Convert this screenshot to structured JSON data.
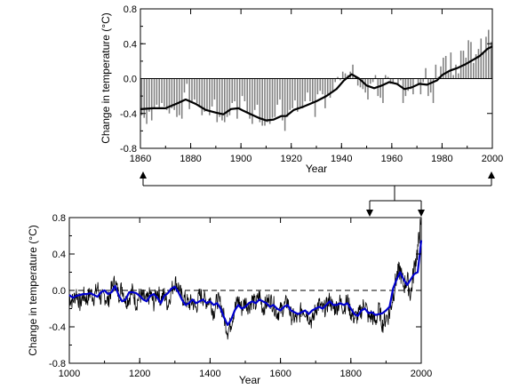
{
  "chart_data": [
    {
      "id": "top",
      "type": "bar",
      "overlay": "line",
      "xlabel": "Year",
      "ylabel": "Change in temperature (°C)",
      "xlim": [
        1860,
        2000
      ],
      "ylim": [
        -0.8,
        0.8
      ],
      "x_ticks": [
        1860,
        1880,
        1900,
        1920,
        1940,
        1960,
        1980,
        2000
      ],
      "x_tick_labels": [
        "1860",
        "1880",
        "1900",
        "1920",
        "1940",
        "1960",
        "1980",
        "2000"
      ],
      "y_ticks": [
        0.8,
        0.4,
        0.0,
        -0.4,
        -0.8
      ],
      "y_tick_labels": [
        "0.8",
        "0.4",
        "0.0",
        "-0.4",
        "-0.8"
      ],
      "bar_color": "#808080",
      "line_color": "#000000",
      "series": [
        {
          "kind": "bars",
          "x": [
            1860,
            1861,
            1862,
            1863,
            1864,
            1865,
            1866,
            1867,
            1868,
            1869,
            1870,
            1871,
            1872,
            1873,
            1874,
            1875,
            1876,
            1877,
            1878,
            1879,
            1880,
            1881,
            1882,
            1883,
            1884,
            1885,
            1886,
            1887,
            1888,
            1889,
            1890,
            1891,
            1892,
            1893,
            1894,
            1895,
            1896,
            1897,
            1898,
            1899,
            1900,
            1901,
            1902,
            1903,
            1904,
            1905,
            1906,
            1907,
            1908,
            1909,
            1910,
            1911,
            1912,
            1913,
            1914,
            1915,
            1916,
            1917,
            1918,
            1919,
            1920,
            1921,
            1922,
            1923,
            1924,
            1925,
            1926,
            1927,
            1928,
            1929,
            1930,
            1931,
            1932,
            1933,
            1934,
            1935,
            1936,
            1937,
            1938,
            1939,
            1940,
            1941,
            1942,
            1943,
            1944,
            1945,
            1946,
            1947,
            1948,
            1949,
            1950,
            1951,
            1952,
            1953,
            1954,
            1955,
            1956,
            1957,
            1958,
            1959,
            1960,
            1961,
            1962,
            1963,
            1964,
            1965,
            1966,
            1967,
            1968,
            1969,
            1970,
            1971,
            1972,
            1973,
            1974,
            1975,
            1976,
            1977,
            1978,
            1979,
            1980,
            1981,
            1982,
            1983,
            1984,
            1985,
            1986,
            1987,
            1988,
            1989,
            1990,
            1991,
            1992,
            1993,
            1994,
            1995,
            1996,
            1997,
            1998,
            1999
          ],
          "values": [
            -0.42,
            -0.45,
            -0.52,
            -0.38,
            -0.48,
            -0.34,
            -0.3,
            -0.33,
            -0.28,
            -0.32,
            -0.36,
            -0.4,
            -0.34,
            -0.36,
            -0.44,
            -0.42,
            -0.46,
            -0.16,
            -0.06,
            -0.35,
            -0.26,
            -0.24,
            -0.28,
            -0.33,
            -0.42,
            -0.38,
            -0.36,
            -0.42,
            -0.32,
            -0.24,
            -0.5,
            -0.44,
            -0.48,
            -0.5,
            -0.44,
            -0.42,
            -0.28,
            -0.26,
            -0.46,
            -0.34,
            -0.2,
            -0.26,
            -0.38,
            -0.46,
            -0.52,
            -0.36,
            -0.3,
            -0.5,
            -0.54,
            -0.54,
            -0.5,
            -0.52,
            -0.45,
            -0.44,
            -0.3,
            -0.24,
            -0.48,
            -0.6,
            -0.44,
            -0.36,
            -0.34,
            -0.25,
            -0.38,
            -0.32,
            -0.34,
            -0.26,
            -0.16,
            -0.26,
            -0.28,
            -0.44,
            -0.18,
            -0.14,
            -0.18,
            -0.34,
            -0.18,
            -0.22,
            -0.16,
            -0.04,
            0.02,
            -0.02,
            0.08,
            0.06,
            0.04,
            0.08,
            0.16,
            0.02,
            -0.08,
            -0.1,
            -0.12,
            -0.16,
            -0.24,
            -0.06,
            -0.04,
            0.04,
            -0.2,
            -0.22,
            -0.28,
            0.04,
            0.02,
            -0.06,
            -0.06,
            0.0,
            -0.06,
            -0.02,
            -0.28,
            -0.2,
            -0.14,
            -0.12,
            -0.18,
            0.0,
            -0.06,
            -0.18,
            -0.04,
            0.12,
            -0.2,
            -0.16,
            -0.28,
            0.16,
            0.02,
            0.14,
            0.24,
            0.26,
            0.08,
            0.3,
            0.04,
            0.16,
            0.06,
            0.32,
            0.32,
            0.24,
            0.44,
            0.42,
            0.18,
            0.28,
            0.34,
            0.46,
            0.3,
            0.48,
            0.56,
            0.42
          ]
        },
        {
          "kind": "line",
          "x": [
            1860,
            1865,
            1870,
            1875,
            1878,
            1882,
            1886,
            1890,
            1893,
            1896,
            1899,
            1901,
            1904,
            1907,
            1910,
            1913,
            1916,
            1918,
            1921,
            1925,
            1930,
            1934,
            1938,
            1941,
            1944,
            1947,
            1950,
            1953,
            1956,
            1959,
            1962,
            1965,
            1968,
            1971,
            1974,
            1978,
            1980,
            1983,
            1986,
            1989,
            1992,
            1995,
            1998,
            2000
          ],
          "values": [
            -0.35,
            -0.34,
            -0.34,
            -0.28,
            -0.24,
            -0.29,
            -0.36,
            -0.39,
            -0.41,
            -0.35,
            -0.34,
            -0.37,
            -0.41,
            -0.45,
            -0.48,
            -0.47,
            -0.43,
            -0.43,
            -0.36,
            -0.32,
            -0.26,
            -0.2,
            -0.12,
            -0.02,
            0.05,
            0.0,
            -0.08,
            -0.11,
            -0.08,
            -0.04,
            -0.06,
            -0.12,
            -0.1,
            -0.06,
            -0.07,
            -0.02,
            0.04,
            0.09,
            0.12,
            0.16,
            0.21,
            0.26,
            0.34,
            0.37
          ]
        }
      ]
    },
    {
      "id": "bottom",
      "type": "line",
      "xlabel": "Year",
      "ylabel": "Change in temperature (°C)",
      "xlim": [
        1000,
        2000
      ],
      "ylim": [
        -0.8,
        0.8
      ],
      "x_ticks": [
        1000,
        1200,
        1400,
        1600,
        1800,
        2000
      ],
      "x_tick_labels": [
        "1000",
        "1200",
        "1400",
        "1600",
        "1800",
        "2000"
      ],
      "y_ticks": [
        0.8,
        0.4,
        0.0,
        -0.4,
        -0.8
      ],
      "y_tick_labels": [
        "0.8",
        "0.4",
        "0.0",
        "-0.4",
        "-0.8"
      ],
      "zero_line": "dashed",
      "series": [
        {
          "kind": "annual",
          "color": "#000000",
          "x": [
            1000,
            1010,
            1020,
            1030,
            1040,
            1050,
            1060,
            1070,
            1080,
            1090,
            1100,
            1110,
            1120,
            1130,
            1140,
            1150,
            1160,
            1170,
            1180,
            1190,
            1200,
            1210,
            1220,
            1230,
            1240,
            1250,
            1260,
            1270,
            1280,
            1290,
            1300,
            1310,
            1320,
            1330,
            1340,
            1350,
            1360,
            1370,
            1380,
            1390,
            1400,
            1410,
            1420,
            1430,
            1440,
            1450,
            1460,
            1470,
            1480,
            1490,
            1500,
            1510,
            1520,
            1530,
            1540,
            1550,
            1560,
            1570,
            1580,
            1590,
            1600,
            1610,
            1620,
            1630,
            1640,
            1650,
            1660,
            1670,
            1680,
            1690,
            1700,
            1710,
            1720,
            1730,
            1740,
            1750,
            1760,
            1770,
            1780,
            1790,
            1800,
            1810,
            1820,
            1830,
            1840,
            1850,
            1860,
            1870,
            1880,
            1890,
            1900,
            1910,
            1920,
            1930,
            1940,
            1950,
            1960,
            1970,
            1980,
            1990,
            1998
          ],
          "values": [
            -0.08,
            -0.12,
            -0.02,
            -0.15,
            -0.05,
            -0.1,
            -0.02,
            -0.08,
            0.04,
            -0.1,
            -0.06,
            -0.12,
            0.02,
            0.1,
            -0.05,
            0.04,
            -0.12,
            -0.08,
            0.0,
            -0.15,
            -0.05,
            -0.08,
            -0.12,
            -0.04,
            -0.14,
            0.0,
            -0.1,
            -0.04,
            -0.16,
            0.0,
            0.1,
            0.04,
            -0.08,
            -0.1,
            -0.15,
            -0.12,
            -0.2,
            -0.05,
            -0.08,
            -0.12,
            -0.1,
            -0.25,
            -0.1,
            -0.15,
            -0.3,
            -0.45,
            -0.35,
            -0.2,
            -0.1,
            -0.2,
            -0.12,
            -0.18,
            -0.1,
            -0.16,
            -0.05,
            -0.2,
            -0.14,
            -0.1,
            -0.15,
            -0.25,
            -0.22,
            -0.18,
            -0.12,
            -0.28,
            -0.3,
            -0.32,
            -0.2,
            -0.22,
            -0.28,
            -0.35,
            -0.2,
            -0.15,
            -0.22,
            -0.18,
            -0.1,
            -0.2,
            -0.18,
            -0.12,
            -0.2,
            -0.1,
            -0.25,
            -0.3,
            -0.28,
            -0.22,
            -0.12,
            -0.3,
            -0.28,
            -0.35,
            -0.2,
            -0.38,
            -0.3,
            -0.25,
            -0.05,
            0.15,
            0.22,
            0.05,
            0.12,
            -0.05,
            0.25,
            0.45,
            0.72
          ]
        },
        {
          "kind": "smoothed",
          "color": "#0000cc",
          "x": [
            1000,
            1010,
            1020,
            1030,
            1040,
            1050,
            1060,
            1070,
            1080,
            1090,
            1100,
            1110,
            1120,
            1130,
            1140,
            1150,
            1160,
            1170,
            1180,
            1190,
            1200,
            1210,
            1220,
            1230,
            1240,
            1250,
            1260,
            1270,
            1280,
            1290,
            1300,
            1310,
            1320,
            1330,
            1340,
            1350,
            1360,
            1370,
            1380,
            1390,
            1400,
            1410,
            1420,
            1430,
            1440,
            1450,
            1460,
            1470,
            1480,
            1490,
            1500,
            1510,
            1520,
            1530,
            1540,
            1550,
            1560,
            1570,
            1580,
            1590,
            1600,
            1610,
            1620,
            1630,
            1640,
            1650,
            1660,
            1670,
            1680,
            1690,
            1700,
            1710,
            1720,
            1730,
            1740,
            1750,
            1760,
            1770,
            1780,
            1790,
            1800,
            1810,
            1820,
            1830,
            1840,
            1850,
            1860,
            1870,
            1880,
            1890,
            1900,
            1910,
            1920,
            1930,
            1940,
            1950,
            1960,
            1970,
            1980,
            1990,
            2000
          ],
          "values": [
            -0.05,
            -0.08,
            -0.06,
            -0.05,
            -0.04,
            -0.04,
            -0.03,
            -0.05,
            -0.07,
            -0.02,
            0.0,
            -0.04,
            -0.02,
            0.05,
            -0.05,
            -0.12,
            -0.1,
            -0.02,
            -0.02,
            -0.03,
            -0.06,
            -0.1,
            -0.12,
            -0.06,
            -0.04,
            -0.08,
            -0.14,
            -0.06,
            -0.03,
            0.02,
            0.04,
            -0.02,
            -0.1,
            -0.16,
            -0.14,
            -0.1,
            -0.14,
            -0.12,
            -0.1,
            -0.14,
            -0.12,
            -0.16,
            -0.14,
            -0.2,
            -0.3,
            -0.38,
            -0.32,
            -0.22,
            -0.16,
            -0.2,
            -0.18,
            -0.14,
            -0.12,
            -0.14,
            -0.1,
            -0.12,
            -0.14,
            -0.18,
            -0.16,
            -0.2,
            -0.22,
            -0.18,
            -0.16,
            -0.22,
            -0.24,
            -0.26,
            -0.24,
            -0.22,
            -0.26,
            -0.22,
            -0.2,
            -0.18,
            -0.2,
            -0.16,
            -0.12,
            -0.16,
            -0.16,
            -0.14,
            -0.16,
            -0.14,
            -0.2,
            -0.26,
            -0.28,
            -0.22,
            -0.2,
            -0.25,
            -0.24,
            -0.27,
            -0.26,
            -0.25,
            -0.22,
            -0.18,
            0.02,
            0.12,
            0.2,
            0.12,
            0.06,
            0.12,
            0.18,
            0.2,
            0.55
          ]
        }
      ]
    }
  ]
}
